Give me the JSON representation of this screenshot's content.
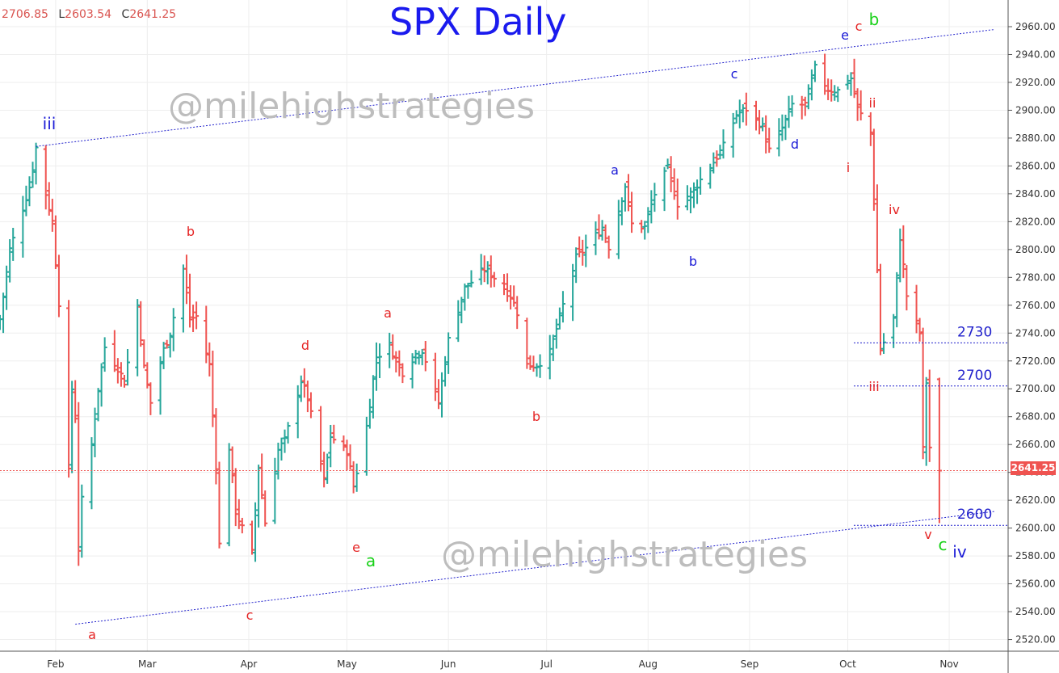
{
  "ohlc": {
    "o_label": "",
    "o_value": "2706.85",
    "l_label": "L",
    "l_value": "2603.54",
    "c_label": "C",
    "c_value": "2641.25"
  },
  "title": "SPX Daily",
  "watermarks": [
    "@milehighstrategies",
    "@milehighstrategies"
  ],
  "last_price_tag": "2641.25",
  "colors": {
    "up": "#26a69a",
    "down": "#ef5350",
    "title": "#1a1aee",
    "label_blue": "#1a1ad6",
    "label_red": "#e52424",
    "label_green": "#19d119",
    "channel": "#2222cc",
    "level": "#2222cc",
    "last_price": "#ef5350",
    "watermark": "#bdbdbd",
    "grid": "#eeeeee"
  },
  "chart_data": {
    "type": "ohlc",
    "title": "SPX Daily",
    "x_tick_labels": [
      "Feb",
      "Mar",
      "Apr",
      "May",
      "Jun",
      "Jul",
      "Aug",
      "Sep",
      "Oct",
      "Nov"
    ],
    "y_tick_labels": [
      "2960.00",
      "2940.00",
      "2920.00",
      "2900.00",
      "2880.00",
      "2860.00",
      "2840.00",
      "2820.00",
      "2800.00",
      "2780.00",
      "2760.00",
      "2740.00",
      "2720.00",
      "2700.00",
      "2680.00",
      "2660.00",
      "2640.00",
      "2620.00",
      "2600.00",
      "2580.00",
      "2560.00",
      "2540.00",
      "2520.00"
    ],
    "ylim": [
      2512,
      2978
    ],
    "last_close": 2641.25,
    "closes": [
      [
        "2018-01-15",
        2750
      ],
      [
        "2018-01-18",
        2800
      ],
      [
        "2018-01-22",
        2830
      ],
      [
        "2018-01-24",
        2845
      ],
      [
        "2018-01-26",
        2873
      ],
      [
        "2018-01-29",
        2840
      ],
      [
        "2018-01-31",
        2820
      ],
      [
        "2018-02-02",
        2762
      ],
      [
        "2018-02-05",
        2640
      ],
      [
        "2018-02-06",
        2700
      ],
      [
        "2018-02-07",
        2680
      ],
      [
        "2018-02-08",
        2585
      ],
      [
        "2018-02-09",
        2620
      ],
      [
        "2018-02-12",
        2660
      ],
      [
        "2018-02-14",
        2700
      ],
      [
        "2018-02-16",
        2730
      ],
      [
        "2018-02-20",
        2715
      ],
      [
        "2018-02-22",
        2705
      ],
      [
        "2018-02-26",
        2760
      ],
      [
        "2018-02-28",
        2715
      ],
      [
        "2018-03-02",
        2690
      ],
      [
        "2018-03-06",
        2728
      ],
      [
        "2018-03-08",
        2740
      ],
      [
        "2018-03-12",
        2786
      ],
      [
        "2018-03-14",
        2750
      ],
      [
        "2018-03-16",
        2752
      ],
      [
        "2018-03-20",
        2717
      ],
      [
        "2018-03-22",
        2645
      ],
      [
        "2018-03-23",
        2588
      ],
      [
        "2018-03-26",
        2658
      ],
      [
        "2018-03-28",
        2612
      ],
      [
        "2018-04-02",
        2582
      ],
      [
        "2018-04-04",
        2644
      ],
      [
        "2018-04-06",
        2604
      ],
      [
        "2018-04-10",
        2656
      ],
      [
        "2018-04-12",
        2663
      ],
      [
        "2018-04-17",
        2706
      ],
      [
        "2018-04-19",
        2693
      ],
      [
        "2018-04-24",
        2634
      ],
      [
        "2018-04-26",
        2666
      ],
      [
        "2018-05-01",
        2655
      ],
      [
        "2018-05-03",
        2630
      ],
      [
        "2018-05-07",
        2673
      ],
      [
        "2018-05-10",
        2723
      ],
      [
        "2018-05-14",
        2731
      ],
      [
        "2018-05-18",
        2712
      ],
      [
        "2018-05-22",
        2725
      ],
      [
        "2018-05-24",
        2728
      ],
      [
        "2018-05-29",
        2690
      ],
      [
        "2018-06-01",
        2735
      ],
      [
        "2018-06-06",
        2772
      ],
      [
        "2018-06-12",
        2786
      ],
      [
        "2018-06-15",
        2780
      ],
      [
        "2018-06-20",
        2767
      ],
      [
        "2018-06-22",
        2755
      ],
      [
        "2018-06-25",
        2717
      ],
      [
        "2018-06-28",
        2717
      ],
      [
        "2018-07-02",
        2726
      ],
      [
        "2018-07-06",
        2760
      ],
      [
        "2018-07-10",
        2794
      ],
      [
        "2018-07-13",
        2801
      ],
      [
        "2018-07-18",
        2816
      ],
      [
        "2018-07-20",
        2802
      ],
      [
        "2018-07-25",
        2846
      ],
      [
        "2018-07-27",
        2818
      ],
      [
        "2018-07-31",
        2816
      ],
      [
        "2018-08-03",
        2840
      ],
      [
        "2018-08-07",
        2858
      ],
      [
        "2018-08-10",
        2833
      ],
      [
        "2018-08-14",
        2840
      ],
      [
        "2018-08-17",
        2850
      ],
      [
        "2018-08-21",
        2863
      ],
      [
        "2018-08-24",
        2874
      ],
      [
        "2018-08-28",
        2897
      ],
      [
        "2018-08-31",
        2901
      ],
      [
        "2018-09-05",
        2888
      ],
      [
        "2018-09-07",
        2871
      ],
      [
        "2018-09-11",
        2887
      ],
      [
        "2018-09-14",
        2904
      ],
      [
        "2018-09-18",
        2904
      ],
      [
        "2018-09-21",
        2930
      ],
      [
        "2018-09-25",
        2915
      ],
      [
        "2018-09-28",
        2914
      ],
      [
        "2018-10-02",
        2923
      ],
      [
        "2018-10-04",
        2901
      ],
      [
        "2018-10-08",
        2884
      ],
      [
        "2018-10-10",
        2785
      ],
      [
        "2018-10-11",
        2728
      ],
      [
        "2018-10-15",
        2750
      ],
      [
        "2018-10-17",
        2809
      ],
      [
        "2018-10-19",
        2767
      ],
      [
        "2018-10-23",
        2740
      ],
      [
        "2018-10-24",
        2656
      ],
      [
        "2018-10-25",
        2705
      ],
      [
        "2018-10-26",
        2658
      ],
      [
        "2018-10-29",
        2641.25
      ]
    ],
    "channel_lines": [
      {
        "from": [
          "2018-01-26",
          2874
        ],
        "to": [
          "2018-11-15",
          2958
        ]
      },
      {
        "from": [
          "2018-02-07",
          2531
        ],
        "to": [
          "2018-11-15",
          2612
        ]
      }
    ],
    "levels": [
      {
        "label": "2730",
        "value": 2733
      },
      {
        "label": "2700",
        "value": 2702
      },
      {
        "label": "2600",
        "value": 2602
      }
    ],
    "wave_labels": [
      {
        "text": "iii",
        "color": "blue"
      },
      {
        "text": "a",
        "color": "red"
      },
      {
        "text": "b",
        "color": "red"
      },
      {
        "text": "c",
        "color": "red"
      },
      {
        "text": "d",
        "color": "red"
      },
      {
        "text": "e",
        "color": "red"
      },
      {
        "text": "a",
        "color": "green"
      },
      {
        "text": "a",
        "color": "red"
      },
      {
        "text": "b",
        "color": "red"
      },
      {
        "text": "a",
        "color": "blue"
      },
      {
        "text": "b",
        "color": "blue"
      },
      {
        "text": "c",
        "color": "blue"
      },
      {
        "text": "d",
        "color": "blue"
      },
      {
        "text": "e",
        "color": "blue"
      },
      {
        "text": "c",
        "color": "red"
      },
      {
        "text": "b",
        "color": "green"
      },
      {
        "text": "i",
        "color": "red"
      },
      {
        "text": "ii",
        "color": "red"
      },
      {
        "text": "iii",
        "color": "red"
      },
      {
        "text": "iv",
        "color": "red"
      },
      {
        "text": "v",
        "color": "red"
      },
      {
        "text": "c",
        "color": "green"
      },
      {
        "text": "iv",
        "color": "blue"
      }
    ],
    "grid": true
  }
}
